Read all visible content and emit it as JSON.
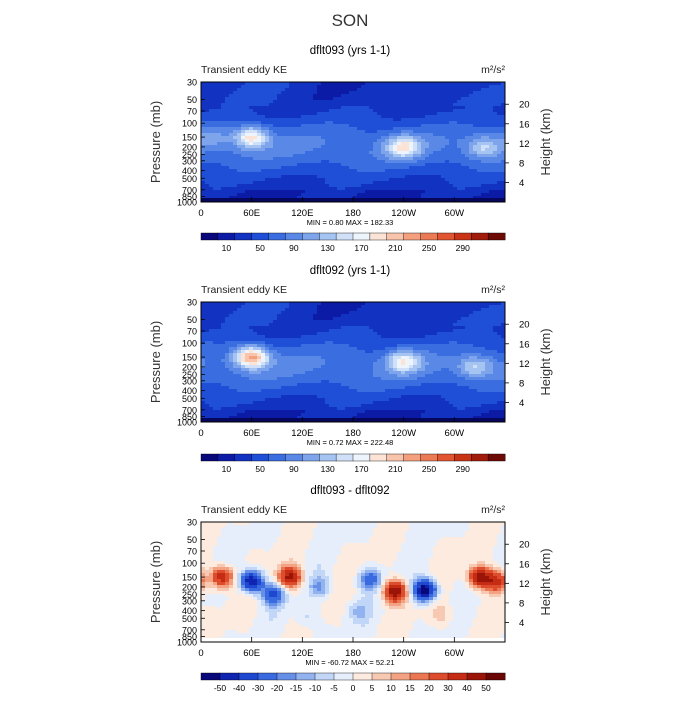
{
  "page_title": "SON",
  "chart_data": [
    {
      "type": "heatmap",
      "title": "dflt093 (yrs 1-1)",
      "left_label": "Transient eddy KE",
      "units_label": "m²/s²",
      "ylabel": "Pressure (mb)",
      "ylabel_right": "Height (km)",
      "x_ticks": [
        "0",
        "60E",
        "120E",
        "180",
        "120W",
        "60W"
      ],
      "x_tick_values": [
        0,
        60,
        120,
        180,
        240,
        300
      ],
      "xlim": [
        0,
        360
      ],
      "y_ticks": [
        "30",
        "50",
        "70",
        "100",
        "150",
        "200",
        "250",
        "300",
        "400",
        "500",
        "700",
        "850",
        "1000"
      ],
      "y_tick_values": [
        30,
        50,
        70,
        100,
        150,
        200,
        250,
        300,
        400,
        500,
        700,
        850,
        1000
      ],
      "ylim": [
        30,
        1000
      ],
      "y_scale": "log",
      "height_ticks": [
        "20",
        "16",
        "12",
        "8",
        "4"
      ],
      "height_tick_values": [
        20,
        16,
        12,
        8,
        4
      ],
      "stats_label": "MIN =     0.80   MAX = 182.33",
      "min": 0.8,
      "max": 182.33,
      "colorbar_labels": [
        "10",
        "50",
        "90",
        "130",
        "170",
        "210",
        "250",
        "290"
      ],
      "features": [
        {
          "lon": 60,
          "p": 150,
          "peak": 182,
          "kind": "jet"
        },
        {
          "lon": 240,
          "p": 200,
          "peak": 170,
          "kind": "jet"
        },
        {
          "lon": 335,
          "p": 200,
          "peak": 130,
          "kind": "jet"
        },
        {
          "lon": 15,
          "p": 150,
          "peak": 95,
          "kind": "jet"
        }
      ]
    },
    {
      "type": "heatmap",
      "title": "dflt092 (yrs 1-1)",
      "left_label": "Transient eddy KE",
      "units_label": "m²/s²",
      "ylabel": "Pressure (mb)",
      "ylabel_right": "Height (km)",
      "x_ticks": [
        "0",
        "60E",
        "120E",
        "180",
        "120W",
        "60W"
      ],
      "x_tick_values": [
        0,
        60,
        120,
        180,
        240,
        300
      ],
      "xlim": [
        0,
        360
      ],
      "y_ticks": [
        "30",
        "50",
        "70",
        "100",
        "150",
        "200",
        "250",
        "300",
        "400",
        "500",
        "700",
        "850",
        "1000"
      ],
      "y_tick_values": [
        30,
        50,
        70,
        100,
        150,
        200,
        250,
        300,
        400,
        500,
        700,
        850,
        1000
      ],
      "ylim": [
        30,
        1000
      ],
      "y_scale": "log",
      "height_ticks": [
        "20",
        "16",
        "12",
        "8",
        "4"
      ],
      "height_tick_values": [
        20,
        16,
        12,
        8,
        4
      ],
      "stats_label": "MIN =     0.72   MAX = 222.48",
      "min": 0.72,
      "max": 222.48,
      "colorbar_labels": [
        "10",
        "50",
        "90",
        "130",
        "170",
        "210",
        "250",
        "290"
      ],
      "features": [
        {
          "lon": 60,
          "p": 150,
          "peak": 222,
          "kind": "jet"
        },
        {
          "lon": 240,
          "p": 170,
          "peak": 160,
          "kind": "jet"
        },
        {
          "lon": 325,
          "p": 200,
          "peak": 130,
          "kind": "jet"
        }
      ]
    },
    {
      "type": "heatmap",
      "title": "dflt093 - dflt092",
      "left_label": "Transient eddy KE",
      "units_label": "m²/s²",
      "ylabel": "Pressure (mb)",
      "ylabel_right": "Height (km)",
      "x_ticks": [
        "0",
        "60E",
        "120E",
        "180",
        "120W",
        "60W"
      ],
      "x_tick_values": [
        0,
        60,
        120,
        180,
        240,
        300
      ],
      "xlim": [
        0,
        360
      ],
      "y_ticks": [
        "30",
        "50",
        "70",
        "100",
        "150",
        "200",
        "250",
        "300",
        "400",
        "500",
        "700",
        "850",
        "1000"
      ],
      "y_tick_values": [
        30,
        50,
        70,
        100,
        150,
        200,
        250,
        300,
        400,
        500,
        700,
        850,
        1000
      ],
      "ylim": [
        30,
        1000
      ],
      "y_scale": "log",
      "height_ticks": [
        "20",
        "16",
        "12",
        "8",
        "4"
      ],
      "height_tick_values": [
        20,
        16,
        12,
        8,
        4
      ],
      "stats_label": "MIN =  -60.72   MAX =  52.21",
      "min": -60.72,
      "max": 52.21,
      "colorbar_labels": [
        "-50",
        "-40",
        "-30",
        "-20",
        "-15",
        "-10",
        "-5",
        "0",
        "5",
        "10",
        "15",
        "20",
        "30",
        "40",
        "50"
      ],
      "features": [
        {
          "lon": 25,
          "p": 150,
          "peak": 40,
          "kind": "diff"
        },
        {
          "lon": 60,
          "p": 170,
          "peak": -55,
          "kind": "diff"
        },
        {
          "lon": 85,
          "p": 250,
          "peak": -30,
          "kind": "diff"
        },
        {
          "lon": 105,
          "p": 150,
          "peak": 45,
          "kind": "diff"
        },
        {
          "lon": 140,
          "p": 200,
          "peak": -15,
          "kind": "diff"
        },
        {
          "lon": 200,
          "p": 160,
          "peak": -25,
          "kind": "diff"
        },
        {
          "lon": 230,
          "p": 230,
          "peak": 50,
          "kind": "diff"
        },
        {
          "lon": 265,
          "p": 220,
          "peak": -60,
          "kind": "diff"
        },
        {
          "lon": 330,
          "p": 150,
          "peak": 45,
          "kind": "diff"
        },
        {
          "lon": 350,
          "p": 170,
          "peak": 35,
          "kind": "diff"
        },
        {
          "lon": 185,
          "p": 400,
          "peak": -10,
          "kind": "diff"
        },
        {
          "lon": 125,
          "p": 500,
          "peak": -8,
          "kind": "diff"
        },
        {
          "lon": 285,
          "p": 450,
          "peak": 8,
          "kind": "diff"
        }
      ]
    }
  ],
  "colors": {
    "positive_scale": [
      "#08087a",
      "#0c1ba6",
      "#1233c2",
      "#1f4fd6",
      "#3a6de0",
      "#5a88e6",
      "#7ea4ec",
      "#a6c4f2",
      "#cfe0f8",
      "#eef4fc",
      "#fbe3d6",
      "#f8c4ab",
      "#f4a07e",
      "#ec7a55",
      "#e25532",
      "#c93416",
      "#a11c0b",
      "#6e0a05"
    ],
    "diff_scale": [
      "#08087a",
      "#0f24b0",
      "#1e48d0",
      "#3a6ae0",
      "#6690e8",
      "#93b3f0",
      "#c2d6f7",
      "#e6eefc",
      "#fdebe0",
      "#f8c9b2",
      "#f3a283",
      "#ea7752",
      "#dd4c2c",
      "#c42c14",
      "#9a1408",
      "#6a0603"
    ]
  }
}
